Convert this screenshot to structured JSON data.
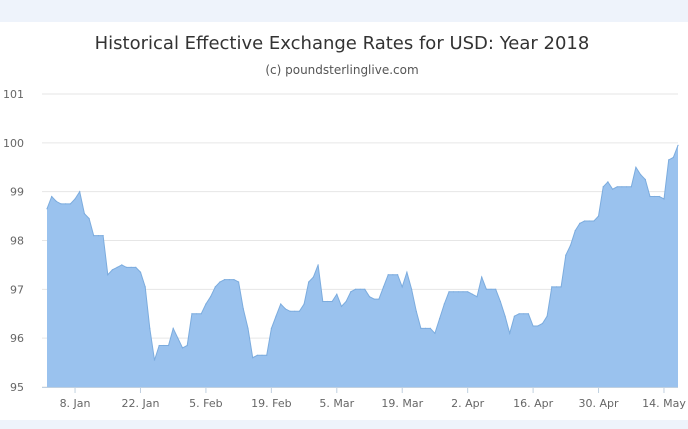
{
  "colors": {
    "area_fill": "#9ac2ee",
    "area_line": "#7cacde",
    "grid": "#e6e6e6",
    "axis": "#c0d0e0"
  },
  "chart_data": {
    "type": "area",
    "title": "Historical Effective Exchange Rates for USD: Year 2018",
    "subtitle": "(c) poundsterlinglive.com",
    "xlabel": "",
    "ylabel": "",
    "ylim": [
      95,
      101
    ],
    "y_ticks": [
      95,
      96,
      97,
      98,
      99,
      100,
      101
    ],
    "xlim": [
      0,
      136
    ],
    "x_ticks": [
      {
        "label": "8. Jan",
        "day": 7
      },
      {
        "label": "22. Jan",
        "day": 21
      },
      {
        "label": "5. Feb",
        "day": 35
      },
      {
        "label": "19. Feb",
        "day": 49
      },
      {
        "label": "5. Mar",
        "day": 63
      },
      {
        "label": "19. Mar",
        "day": 77
      },
      {
        "label": "2. Apr",
        "day": 91
      },
      {
        "label": "16. Apr",
        "day": 105
      },
      {
        "label": "30. Apr",
        "day": 119
      },
      {
        "label": "14. May",
        "day": 133
      }
    ],
    "grid": true,
    "legend": "none",
    "series": [
      {
        "points": [
          [
            1,
            98.65
          ],
          [
            2,
            98.9
          ],
          [
            3,
            98.8
          ],
          [
            4,
            98.75
          ],
          [
            5,
            98.75
          ],
          [
            6,
            98.75
          ],
          [
            7,
            98.85
          ],
          [
            8,
            99.0
          ],
          [
            9,
            98.55
          ],
          [
            10,
            98.45
          ],
          [
            11,
            98.1
          ],
          [
            12,
            98.1
          ],
          [
            13,
            98.1
          ],
          [
            14,
            97.3
          ],
          [
            15,
            97.4
          ],
          [
            16,
            97.45
          ],
          [
            17,
            97.5
          ],
          [
            18,
            97.45
          ],
          [
            19,
            97.45
          ],
          [
            20,
            97.45
          ],
          [
            21,
            97.35
          ],
          [
            22,
            97.05
          ],
          [
            23,
            96.2
          ],
          [
            24,
            95.55
          ],
          [
            25,
            95.85
          ],
          [
            26,
            95.85
          ],
          [
            27,
            95.85
          ],
          [
            28,
            96.2
          ],
          [
            29,
            96.0
          ],
          [
            30,
            95.8
          ],
          [
            31,
            95.85
          ],
          [
            32,
            96.5
          ],
          [
            33,
            96.5
          ],
          [
            34,
            96.5
          ],
          [
            35,
            96.7
          ],
          [
            36,
            96.85
          ],
          [
            37,
            97.05
          ],
          [
            38,
            97.15
          ],
          [
            39,
            97.2
          ],
          [
            40,
            97.2
          ],
          [
            41,
            97.2
          ],
          [
            42,
            97.15
          ],
          [
            43,
            96.6
          ],
          [
            44,
            96.2
          ],
          [
            45,
            95.6
          ],
          [
            46,
            95.65
          ],
          [
            47,
            95.65
          ],
          [
            48,
            95.65
          ],
          [
            49,
            96.2
          ],
          [
            50,
            96.45
          ],
          [
            51,
            96.7
          ],
          [
            52,
            96.6
          ],
          [
            53,
            96.55
          ],
          [
            54,
            96.55
          ],
          [
            55,
            96.55
          ],
          [
            56,
            96.7
          ],
          [
            57,
            97.15
          ],
          [
            58,
            97.25
          ],
          [
            59,
            97.5
          ],
          [
            60,
            96.75
          ],
          [
            61,
            96.75
          ],
          [
            62,
            96.75
          ],
          [
            63,
            96.9
          ],
          [
            64,
            96.65
          ],
          [
            65,
            96.75
          ],
          [
            66,
            96.95
          ],
          [
            67,
            97.0
          ],
          [
            68,
            97.0
          ],
          [
            69,
            97.0
          ],
          [
            70,
            96.85
          ],
          [
            71,
            96.8
          ],
          [
            72,
            96.8
          ],
          [
            73,
            97.05
          ],
          [
            74,
            97.3
          ],
          [
            75,
            97.3
          ],
          [
            76,
            97.3
          ],
          [
            77,
            97.05
          ],
          [
            78,
            97.35
          ],
          [
            79,
            97.0
          ],
          [
            80,
            96.55
          ],
          [
            81,
            96.2
          ],
          [
            82,
            96.2
          ],
          [
            83,
            96.2
          ],
          [
            84,
            96.1
          ],
          [
            85,
            96.4
          ],
          [
            86,
            96.7
          ],
          [
            87,
            96.95
          ],
          [
            88,
            96.95
          ],
          [
            89,
            96.95
          ],
          [
            90,
            96.95
          ],
          [
            91,
            96.95
          ],
          [
            92,
            96.9
          ],
          [
            93,
            96.85
          ],
          [
            94,
            97.25
          ],
          [
            95,
            97.0
          ],
          [
            96,
            97.0
          ],
          [
            97,
            97.0
          ],
          [
            98,
            96.75
          ],
          [
            99,
            96.45
          ],
          [
            100,
            96.1
          ],
          [
            101,
            96.45
          ],
          [
            102,
            96.5
          ],
          [
            103,
            96.5
          ],
          [
            104,
            96.5
          ],
          [
            105,
            96.25
          ],
          [
            106,
            96.25
          ],
          [
            107,
            96.3
          ],
          [
            108,
            96.45
          ],
          [
            109,
            97.05
          ],
          [
            110,
            97.05
          ],
          [
            111,
            97.05
          ],
          [
            112,
            97.7
          ],
          [
            113,
            97.9
          ],
          [
            114,
            98.2
          ],
          [
            115,
            98.35
          ],
          [
            116,
            98.4
          ],
          [
            117,
            98.4
          ],
          [
            118,
            98.4
          ],
          [
            119,
            98.5
          ],
          [
            120,
            99.1
          ],
          [
            121,
            99.2
          ],
          [
            122,
            99.05
          ],
          [
            123,
            99.1
          ],
          [
            124,
            99.1
          ],
          [
            125,
            99.1
          ],
          [
            126,
            99.1
          ],
          [
            127,
            99.5
          ],
          [
            128,
            99.35
          ],
          [
            129,
            99.25
          ],
          [
            130,
            98.9
          ],
          [
            131,
            98.9
          ],
          [
            132,
            98.9
          ],
          [
            133,
            98.85
          ],
          [
            134,
            99.65
          ],
          [
            135,
            99.7
          ],
          [
            136,
            99.95
          ]
        ]
      }
    ]
  }
}
